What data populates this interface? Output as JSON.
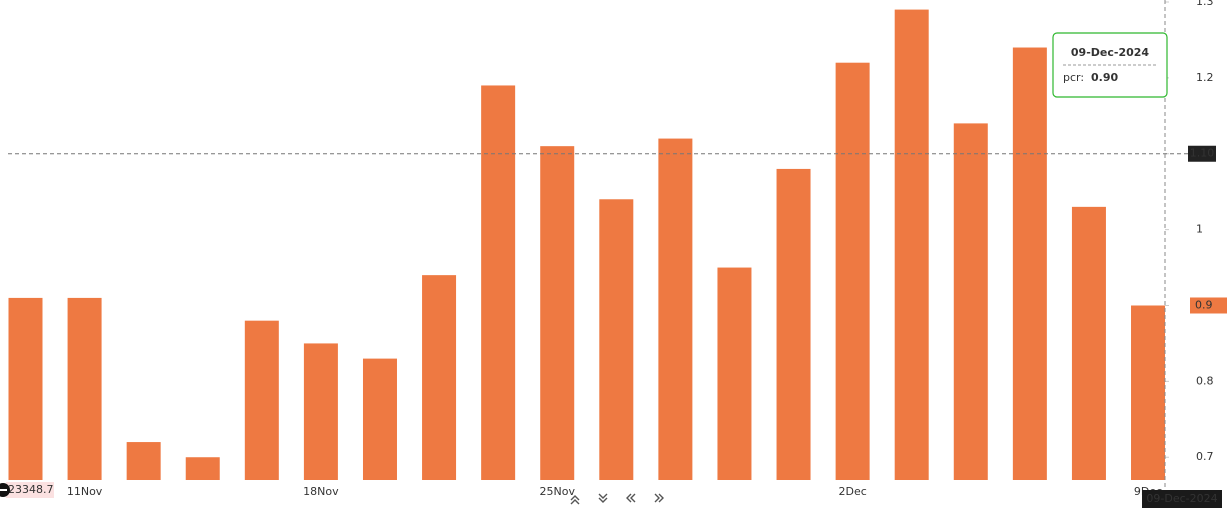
{
  "chart_data": {
    "type": "bar",
    "categories": [
      null,
      "11Nov",
      null,
      null,
      null,
      "18Nov",
      null,
      null,
      null,
      "25Nov",
      null,
      null,
      null,
      null,
      "2Dec",
      null,
      null,
      null,
      null,
      "9Dec"
    ],
    "series": [
      {
        "name": "pcr",
        "color": "#ee7942",
        "values": [
          0.91,
          0.91,
          0.72,
          0.7,
          0.88,
          0.85,
          0.83,
          0.94,
          1.19,
          1.11,
          1.04,
          1.12,
          0.95,
          1.08,
          1.22,
          1.29,
          1.14,
          1.24,
          1.03,
          0.9
        ]
      }
    ],
    "ylim": [
      0.67,
      1.3
    ],
    "yticks": [
      0.7,
      0.8,
      0.9,
      1,
      1.1,
      1.2,
      1.3
    ],
    "crosshair": {
      "y": {
        "value": 1.1,
        "label": "1.10"
      },
      "date": "09-Dec-2024"
    },
    "last_value_marker": 0.9,
    "left_marker": 23348.7,
    "tooltip": {
      "date": "09-Dec-2024",
      "label": "pcr:",
      "value": 0.9,
      "value_label": "0.90"
    }
  }
}
